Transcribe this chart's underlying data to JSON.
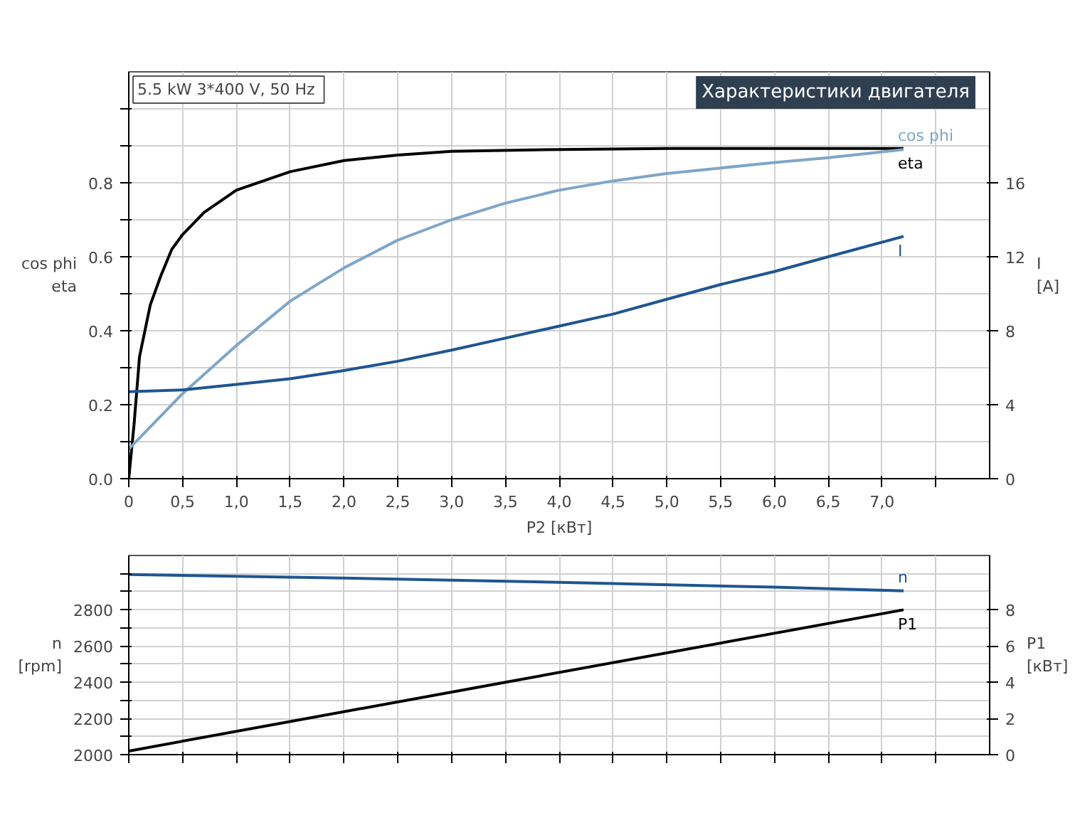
{
  "chart_data": [
    {
      "type": "line",
      "title": "Характеристики двигателя",
      "annotations": [
        "5.5 kW  3*400 V, 50 Hz"
      ],
      "xlabel": "P2 [кВт]",
      "ylabel": "cos phi\neta",
      "y2label": "I\n[A]",
      "xlim": [
        0,
        8
      ],
      "xticks": [
        0,
        {
          "value": 0.5,
          "label": "0,5"
        },
        {
          "value": 1,
          "label": "1,0"
        },
        {
          "value": 1.5,
          "label": "1,5"
        },
        {
          "value": 2,
          "label": "2,0"
        },
        {
          "value": 2.5,
          "label": "2,5"
        },
        {
          "value": 3,
          "label": "3,0"
        },
        {
          "value": 3.5,
          "label": "3,5"
        },
        {
          "value": 4,
          "label": "4,0"
        },
        {
          "value": 4.5,
          "label": "4,5"
        },
        {
          "value": 5,
          "label": "5,0"
        },
        {
          "value": 5.5,
          "label": "5,5"
        },
        {
          "value": 6,
          "label": "6,0"
        },
        {
          "value": 6.5,
          "label": "6,5"
        },
        {
          "value": 7,
          "label": "7,0"
        },
        {
          "value": 7.5,
          "label": null
        }
      ],
      "ylim": [
        0,
        1.1
      ],
      "yticks": [
        {
          "value": 0,
          "label": "0.0"
        },
        {
          "value": 0.1,
          "label": null
        },
        0.2,
        {
          "value": 0.3,
          "label": null
        },
        0.4,
        {
          "value": 0.5,
          "label": null
        },
        0.6,
        {
          "value": 0.7,
          "label": null
        },
        0.8,
        {
          "value": 0.9,
          "label": null
        },
        {
          "value": 1.0,
          "label": null
        }
      ],
      "y2lim": [
        0,
        22
      ],
      "y2ticks": [
        0,
        4,
        8,
        12,
        16
      ],
      "grid": true,
      "series": [
        {
          "name": "eta",
          "color": "#000000",
          "x": [
            0,
            0.05,
            0.1,
            0.2,
            0.3,
            0.4,
            0.5,
            0.7,
            1.0,
            1.5,
            2.0,
            2.5,
            3.0,
            4.0,
            5.0,
            6.0,
            7.2
          ],
          "values": [
            0,
            0.15,
            0.33,
            0.47,
            0.55,
            0.62,
            0.66,
            0.72,
            0.78,
            0.83,
            0.86,
            0.875,
            0.885,
            0.89,
            0.893,
            0.893,
            0.893
          ]
        },
        {
          "name": "cos phi",
          "color": "#7ea6c8",
          "x": [
            0,
            0.5,
            1.0,
            1.5,
            2.0,
            2.5,
            3.0,
            3.5,
            4.0,
            4.5,
            5.0,
            5.5,
            6.0,
            6.5,
            7.2
          ],
          "values": [
            0.08,
            0.23,
            0.36,
            0.48,
            0.57,
            0.645,
            0.7,
            0.745,
            0.78,
            0.805,
            0.825,
            0.84,
            0.855,
            0.868,
            0.89
          ]
        },
        {
          "name": "I",
          "color": "#1f5591",
          "axis": "y2",
          "x": [
            0,
            0.5,
            1.0,
            1.5,
            2.0,
            2.5,
            3.0,
            3.5,
            4.0,
            4.5,
            5.0,
            5.5,
            6.0,
            6.5,
            7.2
          ],
          "values": [
            4.7,
            4.8,
            5.1,
            5.4,
            5.85,
            6.35,
            6.95,
            7.6,
            8.25,
            8.9,
            9.7,
            10.5,
            11.2,
            12.0,
            13.1
          ]
        }
      ]
    },
    {
      "type": "line",
      "ylabel": "n\n[rpm]",
      "y2label": "P1\n[кВт]",
      "xlim": [
        0,
        8
      ],
      "xticks": [
        0,
        0.5,
        1,
        1.5,
        2,
        2.5,
        3,
        3.5,
        4,
        4.5,
        5,
        5.5,
        6,
        6.5,
        7,
        7.5
      ],
      "ylim": [
        2000,
        3100
      ],
      "yticks": [
        2000,
        {
          "value": 2100,
          "label": null
        },
        2200,
        {
          "value": 2300,
          "label": null
        },
        2400,
        {
          "value": 2500,
          "label": null
        },
        2600,
        {
          "value": 2700,
          "label": null
        },
        2800,
        {
          "value": 2900,
          "label": null
        },
        {
          "value": 3000,
          "label": null
        }
      ],
      "y2lim": [
        0,
        11
      ],
      "y2ticks": [
        0,
        2,
        4,
        6,
        8
      ],
      "grid": true,
      "tick_labels": "y",
      "series": [
        {
          "name": "n",
          "color": "#1f5591",
          "x": [
            0,
            2,
            4,
            6,
            7.2
          ],
          "values": [
            2995,
            2975,
            2952,
            2925,
            2905
          ]
        },
        {
          "name": "P1",
          "color": "#000000",
          "axis": "y2",
          "x": [
            0,
            3.5,
            7.2
          ],
          "values": [
            0.2,
            4.0,
            8.0
          ]
        }
      ]
    }
  ]
}
